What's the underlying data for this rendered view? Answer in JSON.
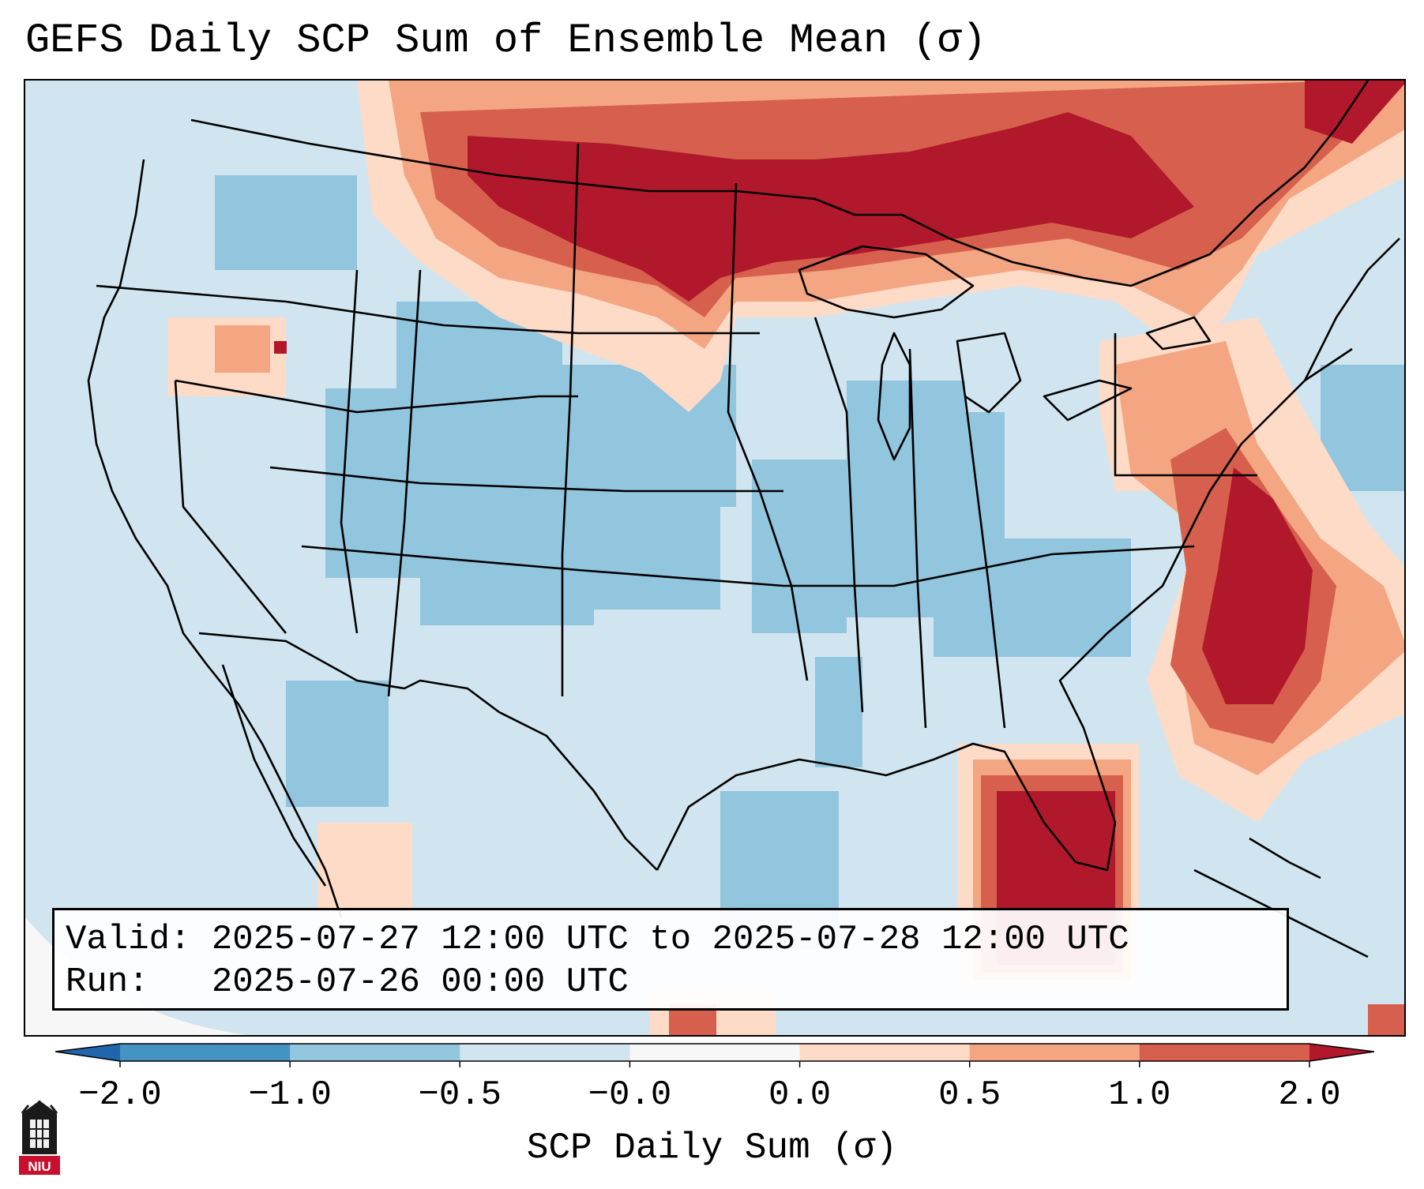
{
  "title": "GEFS Daily SCP Sum of Ensemble Mean (σ)",
  "info": {
    "valid_label": "Valid:",
    "valid_value": "2025-07-27 12:00 UTC to 2025-07-28 12:00 UTC",
    "run_label": "Run:",
    "run_value": "2025-07-26 00:00 UTC"
  },
  "colorbar": {
    "label": "SCP Daily Sum (σ)",
    "ticks": [
      "−2.0",
      "−1.0",
      "−0.5",
      "−0.0",
      "0.0",
      "0.5",
      "1.0",
      "2.0"
    ],
    "colors": [
      "#4393c3",
      "#92c5de",
      "#d1e5f0",
      "#f7f7f7",
      "#fddbc7",
      "#f4a582",
      "#d6604d"
    ],
    "extend_low_color": "#2166ac",
    "extend_high_color": "#b2182b"
  },
  "logo": {
    "text": "NIU"
  },
  "icons": {
    "logo": "niu-logo-icon"
  }
}
